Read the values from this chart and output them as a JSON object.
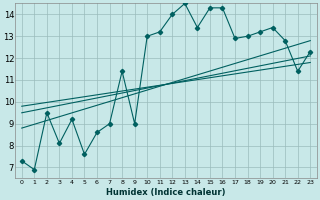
{
  "xlabel": "Humidex (Indice chaleur)",
  "bg_color": "#c8e8e8",
  "grid_color": "#9bbcbc",
  "line_color": "#006060",
  "xlim": [
    -0.5,
    23.5
  ],
  "ylim": [
    6.5,
    14.5
  ],
  "xticks": [
    0,
    1,
    2,
    3,
    4,
    5,
    6,
    7,
    8,
    9,
    10,
    11,
    12,
    13,
    14,
    15,
    16,
    17,
    18,
    19,
    20,
    21,
    22,
    23
  ],
  "yticks": [
    7,
    8,
    9,
    10,
    11,
    12,
    13,
    14
  ],
  "main_line_x": [
    0,
    1,
    2,
    3,
    4,
    5,
    6,
    7,
    8,
    9,
    10,
    11,
    12,
    13,
    14,
    15,
    16,
    17,
    18,
    19,
    20,
    21,
    22,
    23
  ],
  "main_line_y": [
    7.3,
    6.9,
    9.5,
    8.1,
    9.2,
    7.6,
    8.6,
    9.0,
    11.4,
    9.0,
    13.0,
    13.2,
    14.0,
    14.5,
    13.4,
    14.3,
    14.3,
    12.9,
    13.0,
    13.2,
    13.4,
    12.8,
    11.4,
    12.3
  ],
  "trend1_x": [
    0,
    23
  ],
  "trend1_y": [
    9.5,
    12.1
  ],
  "trend2_x": [
    0,
    23
  ],
  "trend2_y": [
    9.8,
    11.8
  ],
  "trend3_x": [
    0,
    23
  ],
  "trend3_y": [
    8.8,
    12.8
  ]
}
